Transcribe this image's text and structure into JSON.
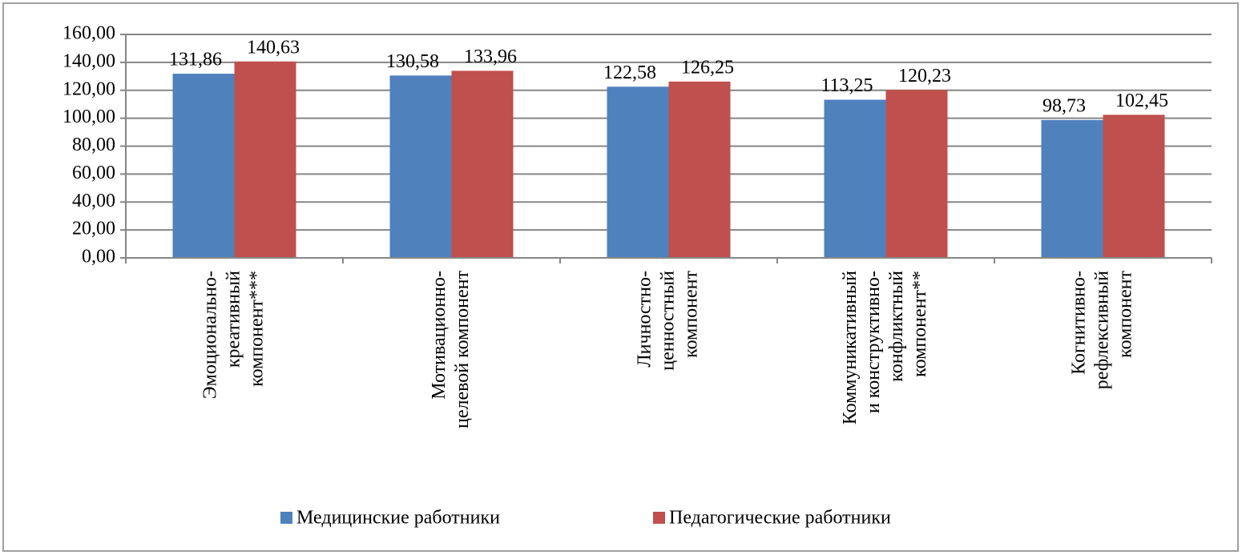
{
  "chart_data": {
    "type": "bar",
    "categories": [
      "Эмоционально-\nкреативный\nкомпонент***",
      "Мотивационно-\nцелевой компонент",
      "Личностно-\nценностный\nкомпонент",
      "Коммуникативный\nи конструктивно-\nконфликтный\nкомпонент**",
      "Когнитивно-\nрефлексивный\nкомпонент"
    ],
    "series": [
      {
        "name": "Медицинские работники",
        "color": "#4f81bd",
        "values": [
          131.86,
          130.58,
          122.58,
          113.25,
          98.73
        ],
        "value_labels": [
          "131,86",
          "130,58",
          "122,58",
          "113,25",
          "98,73"
        ]
      },
      {
        "name": "Педагогические работники",
        "color": "#c0504d",
        "values": [
          140.63,
          133.96,
          126.25,
          120.23,
          102.45
        ],
        "value_labels": [
          "140,63",
          "133,96",
          "126,25",
          "120,23",
          "102,45"
        ]
      }
    ],
    "ylim": [
      0,
      160
    ],
    "yticks": [
      {
        "value": 0,
        "label": "0,00"
      },
      {
        "value": 20,
        "label": "20,00"
      },
      {
        "value": 40,
        "label": "40,00"
      },
      {
        "value": 60,
        "label": "60,00"
      },
      {
        "value": 80,
        "label": "80,00"
      },
      {
        "value": 100,
        "label": "100,00"
      },
      {
        "value": 120,
        "label": "120,00"
      },
      {
        "value": 140,
        "label": "140,00"
      },
      {
        "value": 160,
        "label": "160,00"
      }
    ],
    "grid": true,
    "legend": "bottom"
  }
}
